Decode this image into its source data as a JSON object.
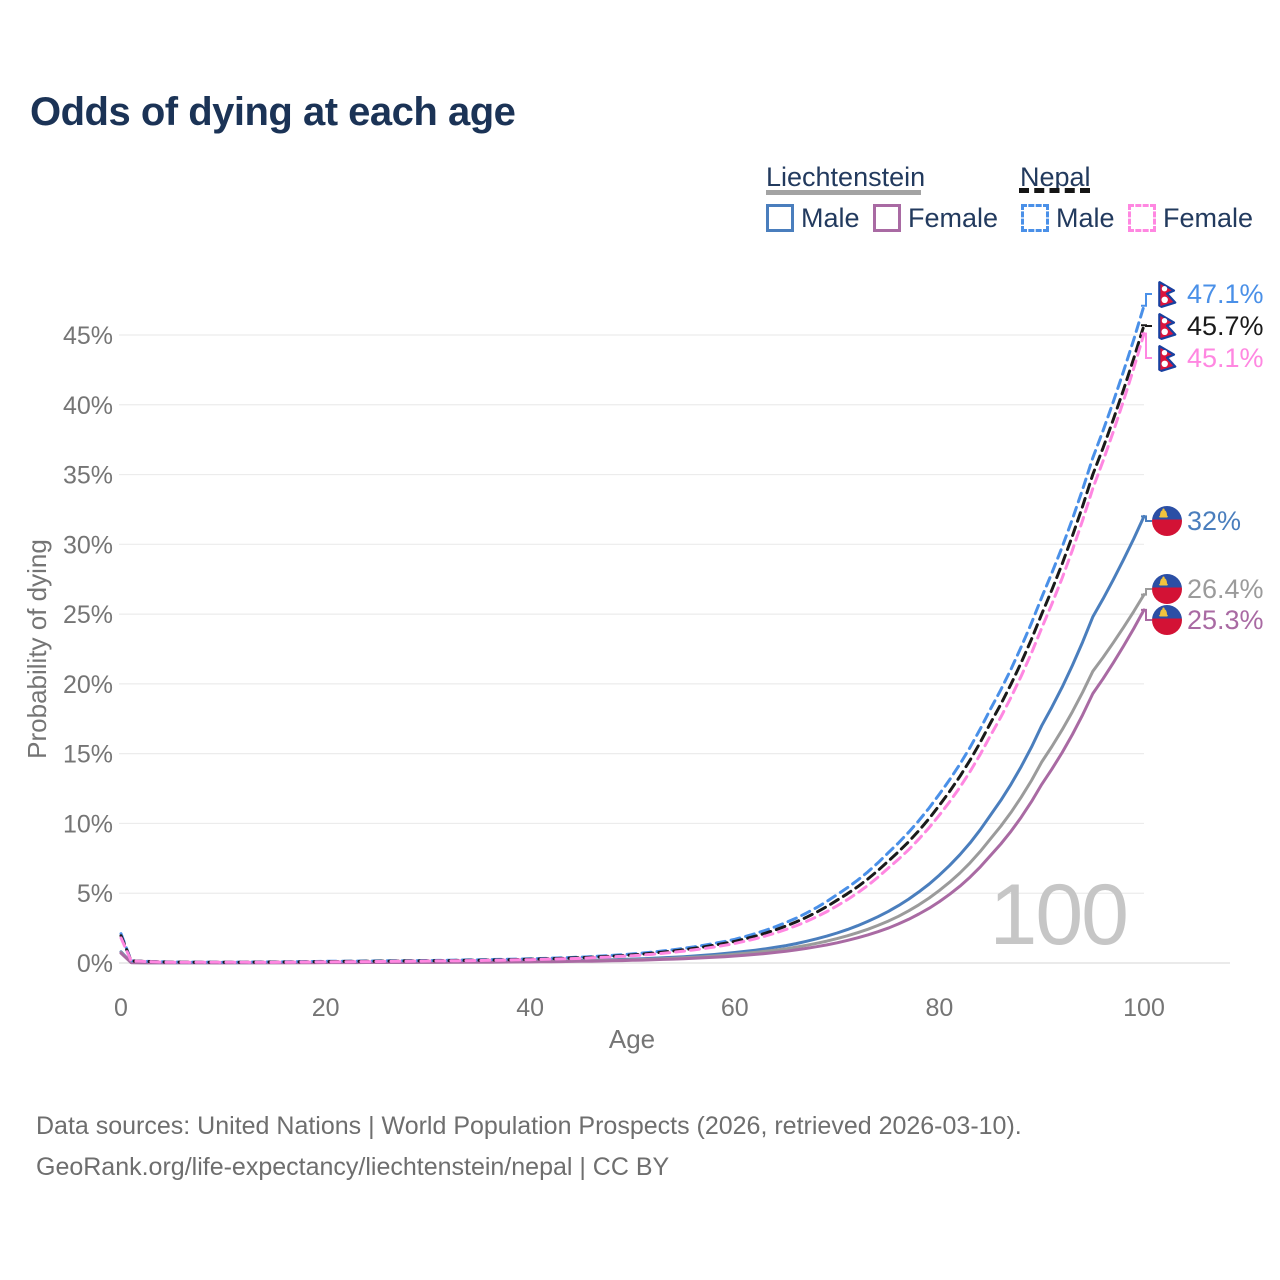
{
  "title": "Odds of dying at each age",
  "legend": {
    "groups": [
      {
        "country": "Liechtenstein",
        "line_style": "solid",
        "underline_color": "#a3a3a3",
        "items": [
          {
            "label": "Male",
            "color": "#4a7ebd"
          },
          {
            "label": "Female",
            "color": "#a96aa3"
          }
        ]
      },
      {
        "country": "Nepal",
        "line_style": "dashed",
        "underline_color": "#151515",
        "items": [
          {
            "label": "Male",
            "color": "#4a90e8"
          },
          {
            "label": "Female",
            "color": "#ff87e1"
          }
        ]
      }
    ]
  },
  "chart_data": {
    "type": "line",
    "title": "Odds of dying at each age",
    "xlabel": "Age",
    "ylabel": "Probability of dying",
    "x_ticks": [
      "0",
      "20",
      "40",
      "60",
      "80",
      "100"
    ],
    "y_ticks": [
      "0%",
      "5%",
      "10%",
      "15%",
      "20%",
      "25%",
      "30%",
      "35%",
      "40%",
      "45%"
    ],
    "xlim": [
      0,
      100
    ],
    "ylim_percent": [
      0,
      48
    ],
    "grid": "horizontal",
    "legend_position": "top-right",
    "age_watermark": "100",
    "series": [
      {
        "name": "Liechtenstein Male",
        "country": "Liechtenstein",
        "sex": "Male",
        "color": "#4a7ebd",
        "dash": false,
        "flag": "liechtenstein",
        "end_label": "32%",
        "end_value_percent": 32.0,
        "points_percent": [
          [
            0,
            0.8
          ],
          [
            1,
            0.035
          ],
          [
            5,
            0.016
          ],
          [
            10,
            0.013
          ],
          [
            15,
            0.03
          ],
          [
            20,
            0.05
          ],
          [
            25,
            0.06
          ],
          [
            30,
            0.07
          ],
          [
            35,
            0.09
          ],
          [
            40,
            0.12
          ],
          [
            45,
            0.18
          ],
          [
            50,
            0.28
          ],
          [
            55,
            0.45
          ],
          [
            60,
            0.75
          ],
          [
            65,
            1.25
          ],
          [
            70,
            2.15
          ],
          [
            75,
            3.7
          ],
          [
            80,
            6.3
          ],
          [
            85,
            10.6
          ],
          [
            90,
            17.0
          ],
          [
            95,
            24.8
          ],
          [
            100,
            32.0
          ]
        ]
      },
      {
        "name": "Liechtenstein Both sexes",
        "country": "Liechtenstein",
        "sex": "Both",
        "color": "#9b9b9b",
        "dash": false,
        "flag": "liechtenstein",
        "end_label": "26.4%",
        "end_value_percent": 26.4,
        "points_percent": [
          [
            0,
            0.75
          ],
          [
            1,
            0.03
          ],
          [
            5,
            0.014
          ],
          [
            10,
            0.011
          ],
          [
            15,
            0.022
          ],
          [
            20,
            0.038
          ],
          [
            25,
            0.047
          ],
          [
            30,
            0.056
          ],
          [
            35,
            0.072
          ],
          [
            40,
            0.1
          ],
          [
            45,
            0.15
          ],
          [
            50,
            0.23
          ],
          [
            55,
            0.37
          ],
          [
            60,
            0.62
          ],
          [
            65,
            1.02
          ],
          [
            70,
            1.75
          ],
          [
            75,
            3.0
          ],
          [
            80,
            5.2
          ],
          [
            85,
            8.9
          ],
          [
            90,
            14.4
          ],
          [
            95,
            20.9
          ],
          [
            100,
            26.4
          ]
        ]
      },
      {
        "name": "Liechtenstein Female",
        "country": "Liechtenstein",
        "sex": "Female",
        "color": "#a96aa3",
        "dash": false,
        "flag": "liechtenstein",
        "end_label": "25.3%",
        "end_value_percent": 25.3,
        "points_percent": [
          [
            0,
            0.7
          ],
          [
            1,
            0.027
          ],
          [
            5,
            0.013
          ],
          [
            10,
            0.01
          ],
          [
            15,
            0.016
          ],
          [
            20,
            0.027
          ],
          [
            25,
            0.034
          ],
          [
            30,
            0.042
          ],
          [
            35,
            0.056
          ],
          [
            40,
            0.082
          ],
          [
            45,
            0.12
          ],
          [
            50,
            0.19
          ],
          [
            55,
            0.31
          ],
          [
            60,
            0.5
          ],
          [
            65,
            0.84
          ],
          [
            70,
            1.45
          ],
          [
            75,
            2.5
          ],
          [
            80,
            4.4
          ],
          [
            85,
            7.7
          ],
          [
            90,
            12.8
          ],
          [
            95,
            19.3
          ],
          [
            100,
            25.3
          ]
        ]
      },
      {
        "name": "Nepal Male",
        "country": "Nepal",
        "sex": "Male",
        "color": "#4a90e8",
        "dash": true,
        "flag": "nepal",
        "end_label": "47.1%",
        "end_value_percent": 47.1,
        "points_percent": [
          [
            0,
            2.1
          ],
          [
            1,
            0.16
          ],
          [
            5,
            0.07
          ],
          [
            10,
            0.06
          ],
          [
            15,
            0.08
          ],
          [
            20,
            0.12
          ],
          [
            25,
            0.15
          ],
          [
            30,
            0.18
          ],
          [
            35,
            0.23
          ],
          [
            40,
            0.3
          ],
          [
            45,
            0.42
          ],
          [
            50,
            0.65
          ],
          [
            55,
            1.05
          ],
          [
            60,
            1.7
          ],
          [
            65,
            2.9
          ],
          [
            70,
            4.9
          ],
          [
            75,
            7.9
          ],
          [
            80,
            12.1
          ],
          [
            85,
            18.2
          ],
          [
            90,
            26.2
          ],
          [
            95,
            36.2
          ],
          [
            100,
            47.1
          ]
        ]
      },
      {
        "name": "Nepal Both sexes",
        "country": "Nepal",
        "sex": "Both",
        "color": "#1a1a1a",
        "dash": true,
        "flag": "nepal",
        "end_label": "45.7%",
        "end_value_percent": 45.7,
        "points_percent": [
          [
            0,
            1.95
          ],
          [
            1,
            0.15
          ],
          [
            5,
            0.065
          ],
          [
            10,
            0.055
          ],
          [
            15,
            0.07
          ],
          [
            20,
            0.1
          ],
          [
            25,
            0.13
          ],
          [
            30,
            0.16
          ],
          [
            35,
            0.2
          ],
          [
            40,
            0.27
          ],
          [
            45,
            0.38
          ],
          [
            50,
            0.58
          ],
          [
            55,
            0.95
          ],
          [
            60,
            1.55
          ],
          [
            65,
            2.65
          ],
          [
            70,
            4.5
          ],
          [
            75,
            7.3
          ],
          [
            80,
            11.3
          ],
          [
            85,
            17.2
          ],
          [
            90,
            25.0
          ],
          [
            95,
            35.0
          ],
          [
            100,
            45.7
          ]
        ]
      },
      {
        "name": "Nepal Female",
        "country": "Nepal",
        "sex": "Female",
        "color": "#ff87e1",
        "dash": true,
        "flag": "nepal",
        "end_label": "45.1%",
        "end_value_percent": 45.1,
        "points_percent": [
          [
            0,
            1.8
          ],
          [
            1,
            0.14
          ],
          [
            5,
            0.06
          ],
          [
            10,
            0.05
          ],
          [
            15,
            0.06
          ],
          [
            20,
            0.08
          ],
          [
            25,
            0.11
          ],
          [
            30,
            0.14
          ],
          [
            35,
            0.18
          ],
          [
            40,
            0.24
          ],
          [
            45,
            0.34
          ],
          [
            50,
            0.52
          ],
          [
            55,
            0.85
          ],
          [
            60,
            1.4
          ],
          [
            65,
            2.4
          ],
          [
            70,
            4.1
          ],
          [
            75,
            6.8
          ],
          [
            80,
            10.6
          ],
          [
            85,
            16.3
          ],
          [
            90,
            24.0
          ],
          [
            95,
            34.0
          ],
          [
            100,
            45.1
          ]
        ]
      }
    ]
  },
  "footer": {
    "line1": "Data sources: United Nations | World Population Prospects (2026, retrieved 2026-03-10).",
    "line2": "GeoRank.org/life-expectancy/liechtenstein/nepal | CC BY"
  }
}
